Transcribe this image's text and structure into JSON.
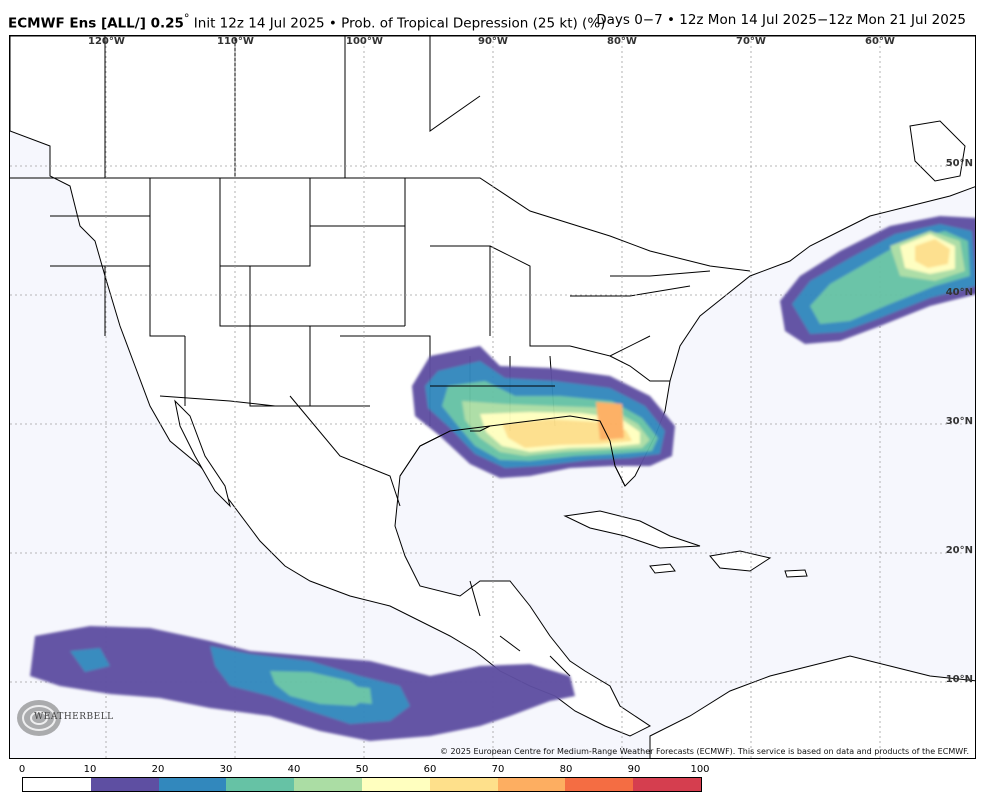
{
  "header": {
    "model": "ECMWF Ens [ALL/] 0.25",
    "degree": "°",
    "init": " Init 12z 14 Jul 2025 • Prob. of Tropical Depression (25 kt) (%)",
    "valid": "Days 0−7 • 12z Mon 14 Jul 2025−12z Mon 21 Jul 2025"
  },
  "longitude_labels": [
    "120°W",
    "110°W",
    "100°W",
    "90°W",
    "80°W",
    "70°W",
    "60°W"
  ],
  "latitude_labels": [
    "50°N",
    "40°N",
    "30°N",
    "20°N",
    "10°N"
  ],
  "copyright": "© 2025 European Centre for Medium-Range Weather Forecasts (ECMWF). This service is based on data and products of the ECMWF.",
  "logo": {
    "text": "WEATHERBELL"
  },
  "colorbar": {
    "ticks": [
      "0",
      "10",
      "20",
      "30",
      "40",
      "50",
      "60",
      "70",
      "80",
      "90",
      "100"
    ],
    "colors": [
      "#ffffff",
      "#5e4fa2",
      "#3288bd",
      "#66c2a5",
      "#abdda4",
      "#ffffbf",
      "#fee08b",
      "#fdae61",
      "#f46d43",
      "#d53e4f",
      "#9e0142"
    ]
  },
  "colors": {
    "ocean": "#f6f7fd",
    "land": "#ffffff",
    "coast": "#000000",
    "grid": "#a0a0a0"
  }
}
